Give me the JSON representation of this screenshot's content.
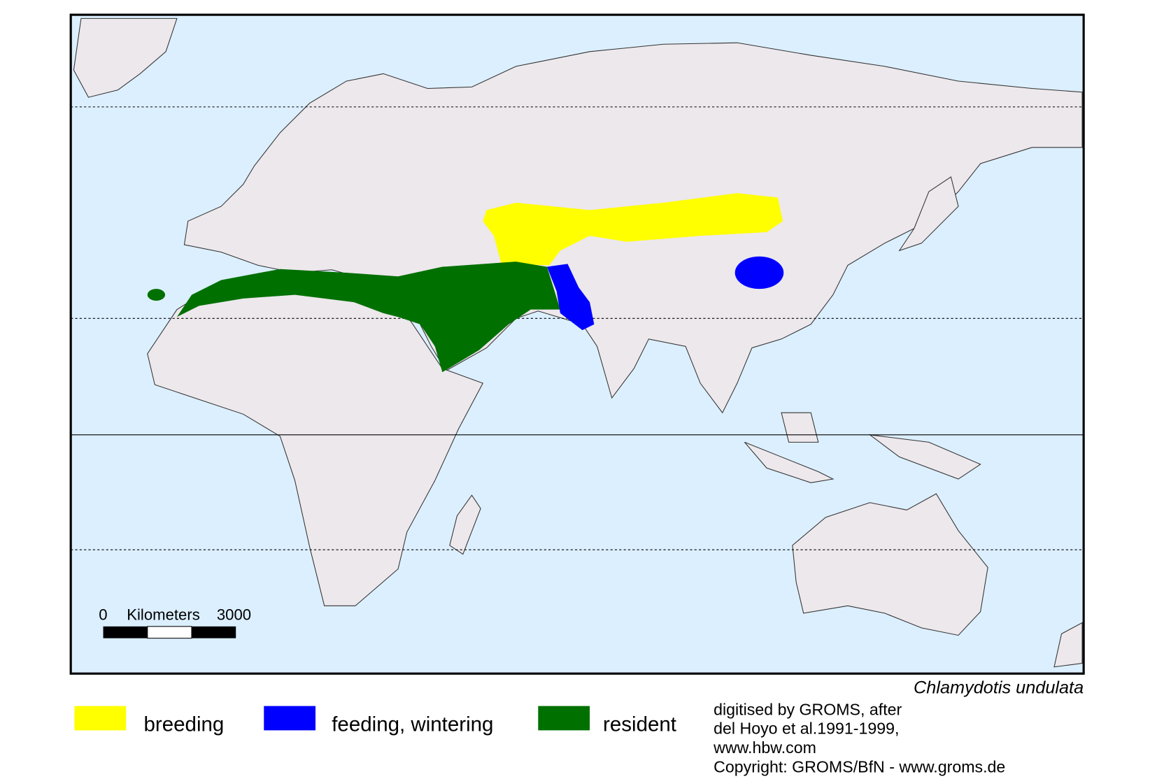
{
  "map": {
    "species": "Chlamydotis undulata",
    "scale_bar": {
      "start": "0",
      "unit": "Kilometers",
      "end": "3000"
    }
  },
  "legend": [
    {
      "label": "breeding",
      "color": "#ffff00"
    },
    {
      "label": "feeding, wintering",
      "color": "#0000ff"
    },
    {
      "label": "resident",
      "color": "#007000"
    }
  ],
  "credits": [
    "digitised by GROMS, after",
    "del Hoyo et al.1991-1999,",
    "www.hbw.com",
    "Copyright: GROMS/BfN - www.groms.de"
  ]
}
